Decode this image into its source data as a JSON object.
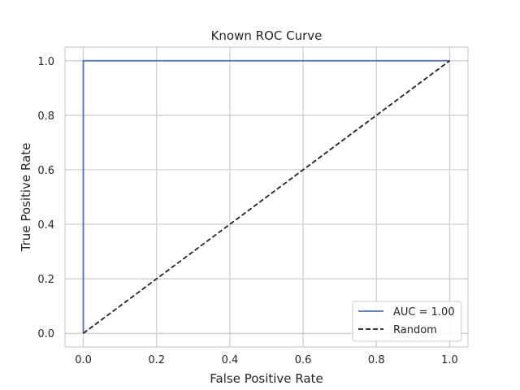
{
  "chart_data": {
    "type": "line",
    "title": "Known ROC Curve",
    "xlabel": "False Positive Rate",
    "ylabel": "True Positive Rate",
    "xlim": [
      -0.05,
      1.05
    ],
    "ylim": [
      -0.05,
      1.05
    ],
    "xticks": [
      "0.0",
      "0.2",
      "0.4",
      "0.6",
      "0.8",
      "1.0"
    ],
    "yticks": [
      "0.0",
      "0.2",
      "0.4",
      "0.6",
      "0.8",
      "1.0"
    ],
    "grid": true,
    "legend_position": "lower right",
    "series": [
      {
        "name": "AUC = 1.00",
        "color": "#4c72b0",
        "style": "solid",
        "x": [
          0.0,
          0.0,
          1.0
        ],
        "y": [
          0.0,
          1.0,
          1.0
        ]
      },
      {
        "name": "Random",
        "color": "#222222",
        "style": "dashed",
        "x": [
          0.0,
          1.0
        ],
        "y": [
          0.0,
          1.0
        ]
      }
    ]
  }
}
